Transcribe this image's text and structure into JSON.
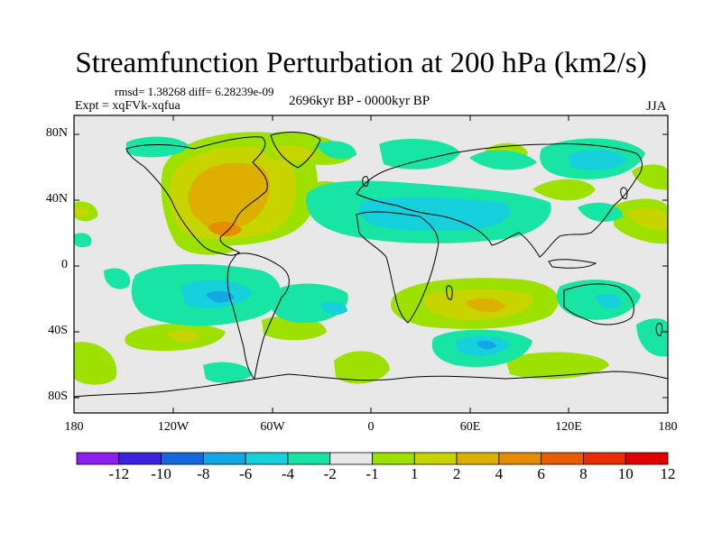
{
  "title": "Streamfunction Perturbation at 200 hPa (km2/s)",
  "stats": "rmsd= 1.38268 diff= 6.28239e-09",
  "experiment": "Expt = xqFVk-xqfua",
  "period": "2696kyr BP - 0000kyr BP",
  "season": "JJA",
  "lat_labels": [
    "80N",
    "40N",
    "0",
    "40S",
    "80S"
  ],
  "lon_labels": [
    "180",
    "120W",
    "60W",
    "0",
    "60E",
    "120E",
    "180"
  ],
  "colorbar": {
    "colors": [
      "#8f1cf0",
      "#3a22e0",
      "#1668e0",
      "#12a8e6",
      "#16d0dc",
      "#18e4a4",
      "#e8e8e8",
      "#9ee000",
      "#c8d400",
      "#ddb000",
      "#e68c00",
      "#ea5c00",
      "#e82e00",
      "#e00000"
    ],
    "labels": [
      "-12",
      "-10",
      "-8",
      "-6",
      "-4",
      "-2",
      "-1",
      "1",
      "2",
      "4",
      "6",
      "8",
      "10",
      "12"
    ]
  },
  "colors": {
    "background": "#e8e8e8",
    "neg_light": "#18e4a4",
    "neg_mid": "#16d0dc",
    "neg_dark": "#12a8e6",
    "pos_light": "#9ee000",
    "pos_mid": "#c8d400",
    "pos_dark": "#ddb000",
    "pos_strong": "#e68c00"
  }
}
